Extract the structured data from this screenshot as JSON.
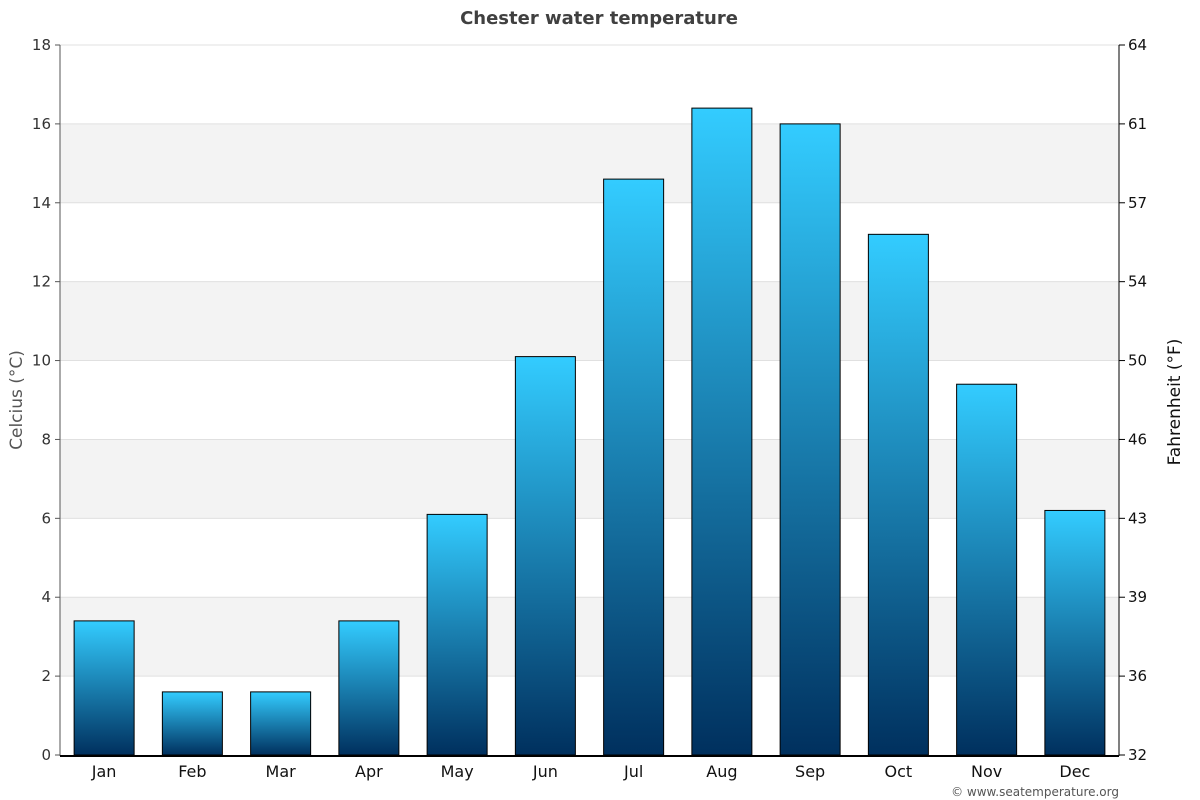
{
  "chart_data": {
    "type": "bar",
    "title": "Chester water temperature",
    "categories": [
      "Jan",
      "Feb",
      "Mar",
      "Apr",
      "May",
      "Jun",
      "Jul",
      "Aug",
      "Sep",
      "Oct",
      "Nov",
      "Dec"
    ],
    "values": [
      3.4,
      1.6,
      1.6,
      3.4,
      6.1,
      10.1,
      14.6,
      16.4,
      16.0,
      13.2,
      9.4,
      6.2
    ],
    "ylabel": "Celcius (°C)",
    "ylabel_right": "Fahrenheit (°F)",
    "ylim": [
      0,
      18
    ],
    "yticks": [
      "0",
      "2",
      "4",
      "6",
      "8",
      "10",
      "12",
      "14",
      "16",
      "18"
    ],
    "yticks_right": [
      "32",
      "36",
      "39",
      "43",
      "46",
      "50",
      "54",
      "57",
      "61",
      "64"
    ],
    "grid": true,
    "banded_background": true,
    "legend": "none",
    "credit": "© www.seatemperature.org",
    "colors": {
      "bar_top": "#33ccff",
      "bar_bottom": "#00305e",
      "bar_outline": "#000000",
      "band": "#f3f3f3",
      "grid": "#e0e0e0"
    }
  }
}
